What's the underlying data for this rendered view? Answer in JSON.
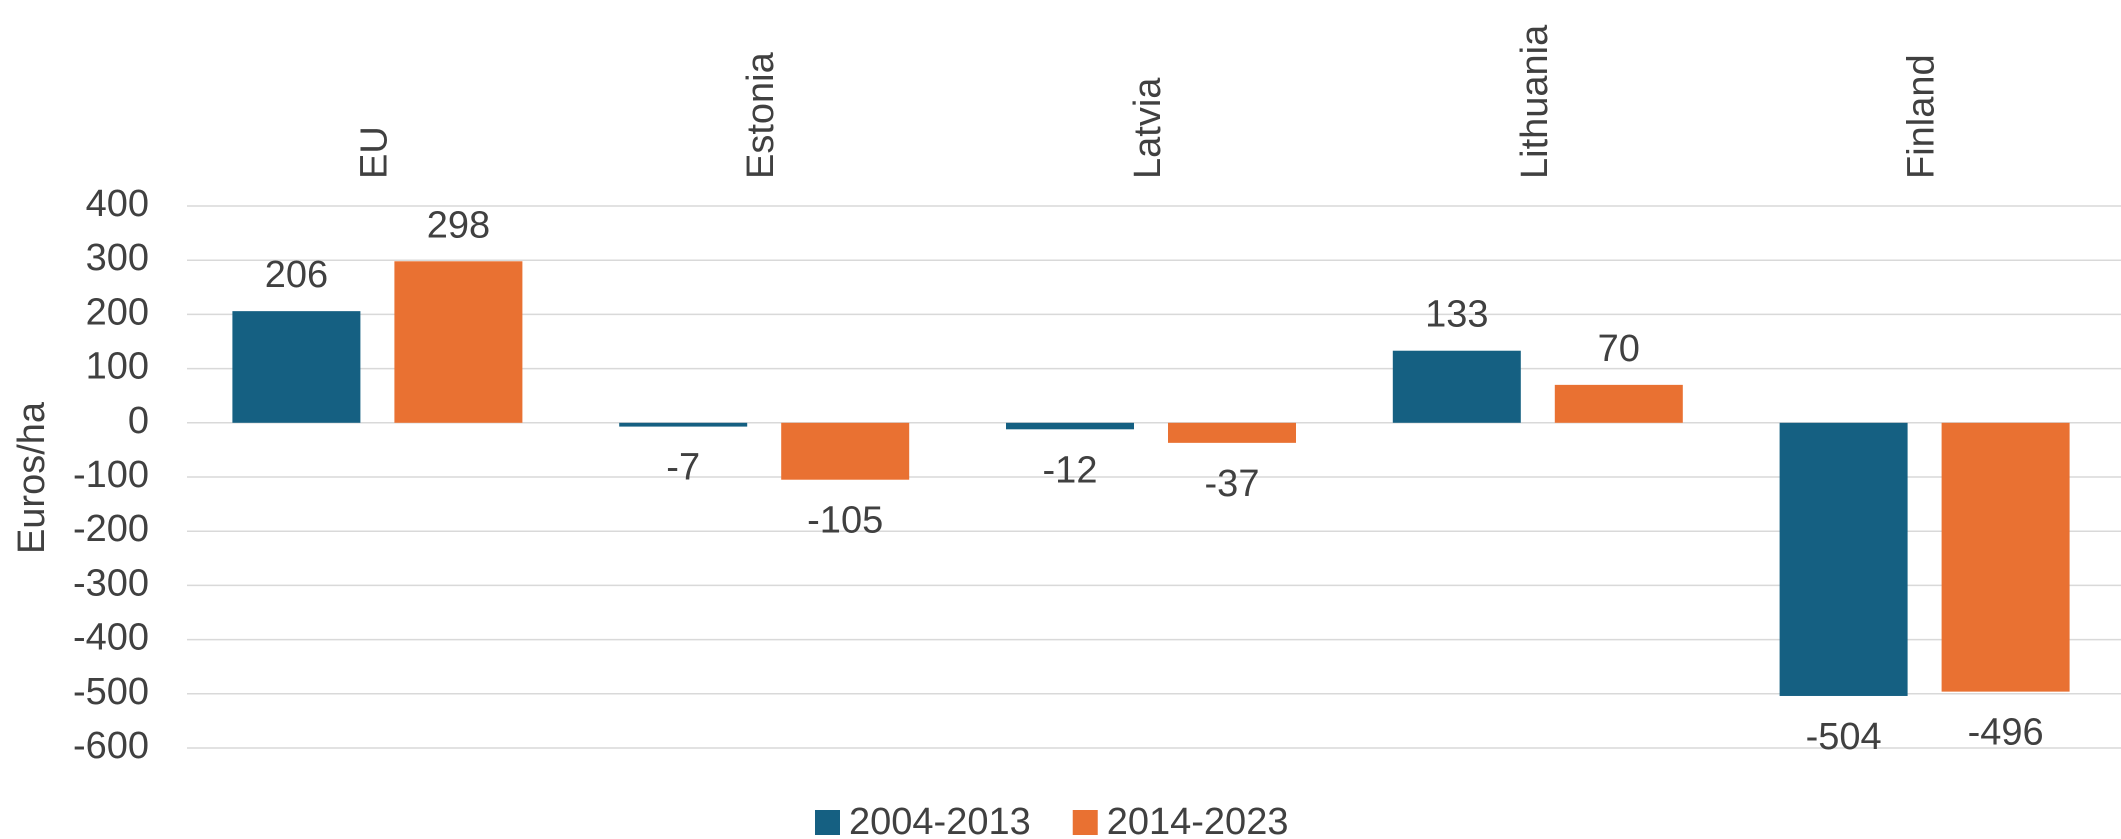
{
  "chart_data": {
    "type": "bar",
    "categories": [
      "EU",
      "Estonia",
      "Latvia",
      "Lithuania",
      "Finland"
    ],
    "series": [
      {
        "name": "2004-2013",
        "color": "#156082",
        "values": [
          206,
          -7,
          -12,
          133,
          -504
        ]
      },
      {
        "name": "2014-2023",
        "color": "#e97132",
        "values": [
          298,
          -105,
          -37,
          70,
          -496
        ]
      }
    ],
    "y_label": "Euros/ha",
    "ylim": [
      -600,
      400
    ],
    "yticks": [
      -600,
      -500,
      -400,
      -300,
      -200,
      -100,
      0,
      100,
      200,
      300,
      400
    ],
    "grid": true,
    "legend": "bottom"
  }
}
